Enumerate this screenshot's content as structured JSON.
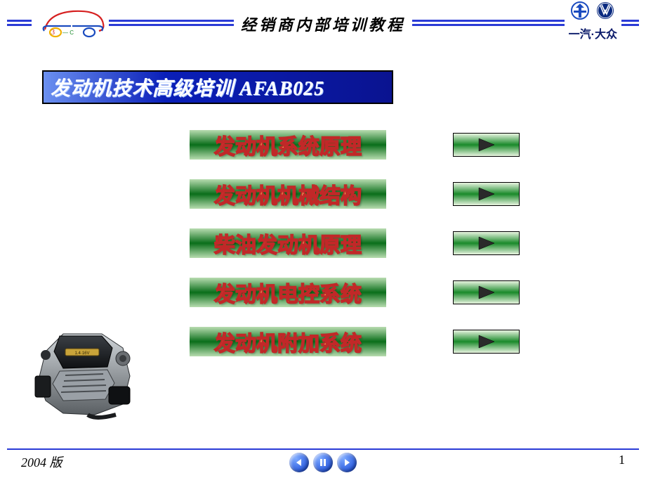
{
  "colors": {
    "header_line": "#2a3bd6",
    "title_bar_left": "#6b90f0",
    "title_bar_mid": "#0a1fb8",
    "title_bar_right": "#0a1390",
    "menu_bg_edge": "#b8dcb0",
    "menu_bg_center": "#0a6e1a",
    "menu_text_fill": "#f9d862",
    "menu_text_stroke": "#c12828",
    "play_btn_edge": "#e8f4e0",
    "play_btn_center": "#1a8a2a",
    "play_triangle": "#2a2a2a",
    "footer_line": "#2a3bd6",
    "nav_btn_bg_top": "#7aa8ff",
    "nav_btn_bg_bot": "#0a3bd0",
    "nav_glyph": "#ffffff",
    "header_title": "#000000",
    "brand_text": "#0a1a6a",
    "faw_blue": "#1a4bbf",
    "vw_blue": "#0a2a80",
    "car_red": "#d62020",
    "car_blue": "#1a4bbf",
    "car_yellow": "#f0b000"
  },
  "header": {
    "title": "经销商内部培训教程",
    "brand_text": "一汽·大众"
  },
  "title_bar": "发动机技术高级培训 AFAB025",
  "menu": {
    "items": [
      {
        "label": "发动机系统原理"
      },
      {
        "label": "发动机机械结构"
      },
      {
        "label": "柴油发动机原理"
      },
      {
        "label": "发动机电控系统"
      },
      {
        "label": "发动机附加系统"
      }
    ]
  },
  "footer": {
    "version": "2004 版",
    "page": "1"
  }
}
